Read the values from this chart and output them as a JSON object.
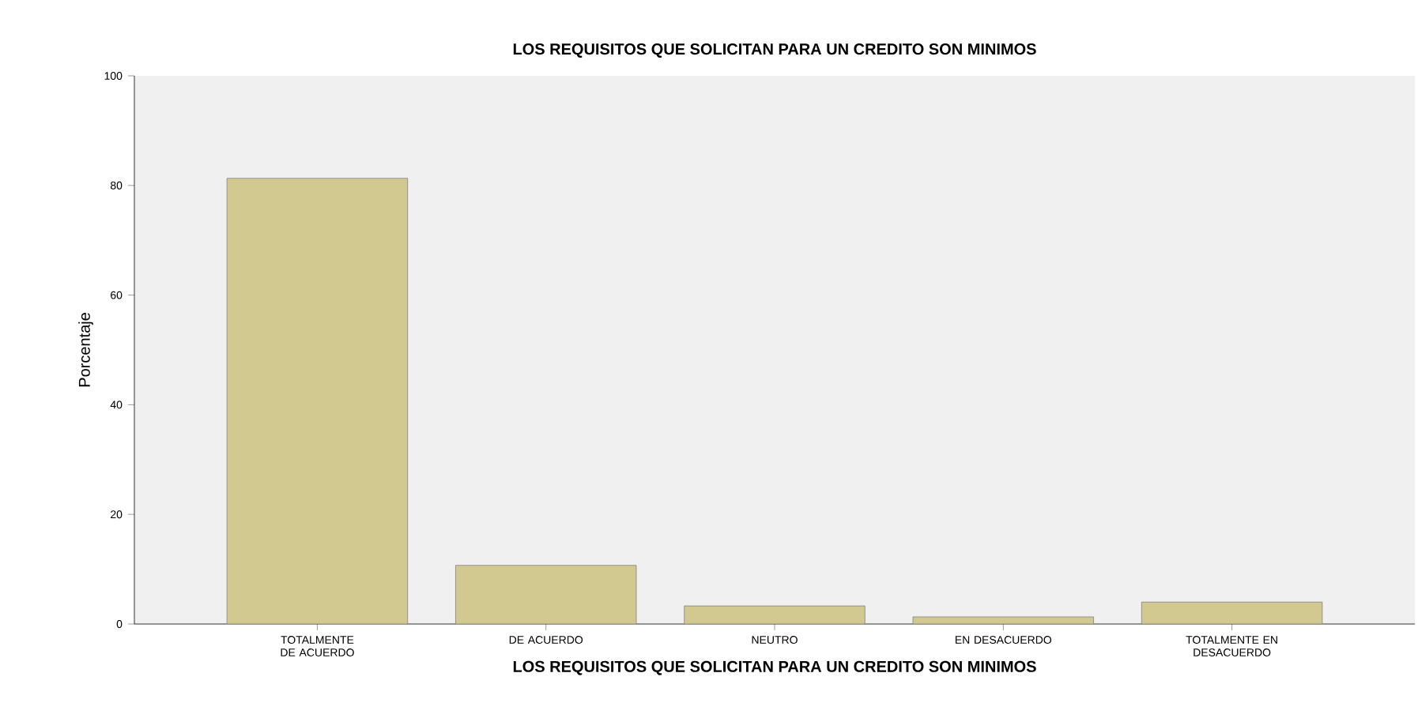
{
  "chart_data": {
    "type": "bar",
    "title": "LOS REQUISITOS QUE SOLICITAN PARA UN CREDITO SON MINIMOS",
    "xlabel": "LOS REQUISITOS QUE SOLICITAN PARA UN CREDITO SON MINIMOS",
    "ylabel": "Porcentaje",
    "categories": [
      "TOTALMENTE DE ACUERDO",
      "DE ACUERDO",
      "NEUTRO",
      "EN DESACUERDO",
      "TOTALMENTE EN DESACUERDO"
    ],
    "values": [
      81.3,
      10.7,
      3.3,
      1.3,
      4.0
    ],
    "color": "#d1c98f",
    "ylim": [
      0,
      100
    ],
    "yticks": [
      0,
      20,
      40,
      60,
      80,
      100
    ],
    "grid": false
  }
}
